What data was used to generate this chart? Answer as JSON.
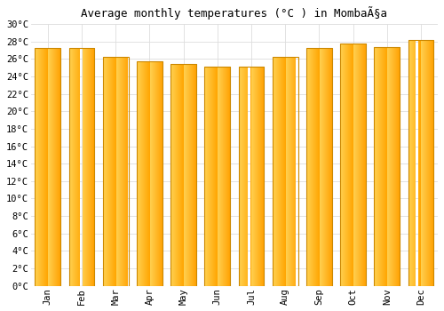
{
  "title": "Average monthly temperatures (°C ) in MombaÃ§a",
  "months": [
    "Jan",
    "Feb",
    "Mar",
    "Apr",
    "May",
    "Jun",
    "Jul",
    "Aug",
    "Sep",
    "Oct",
    "Nov",
    "Dec"
  ],
  "values": [
    27.3,
    27.3,
    26.3,
    25.7,
    25.4,
    25.1,
    25.1,
    26.3,
    27.3,
    27.8,
    27.4,
    28.2
  ],
  "bar_color_left": "#FFA500",
  "bar_color_center": "#FFD050",
  "bar_color_right": "#FFA000",
  "bar_edge_color": "#CC8800",
  "ylim": [
    0,
    30
  ],
  "ytick_step": 2,
  "background_color": "#FFFFFF",
  "grid_color": "#DDDDDD",
  "title_fontsize": 9,
  "tick_fontsize": 7.5,
  "font_family": "monospace"
}
